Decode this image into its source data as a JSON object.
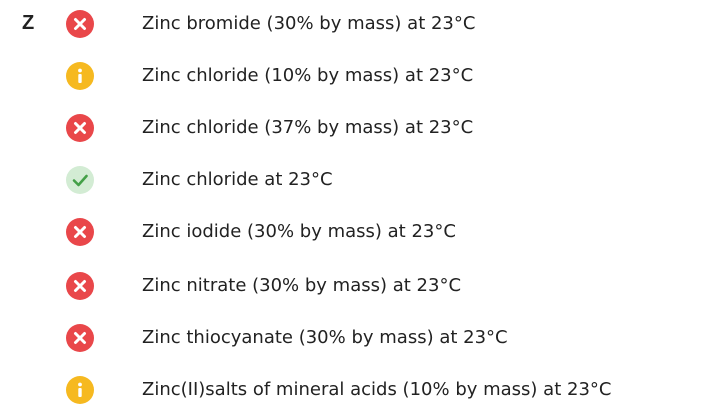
{
  "section": {
    "letter": "Z",
    "items": [
      "Zinc bromide (30% by mass) at 23°C",
      "Zinc chloride (10% by mass) at 23°C",
      "Zinc chloride (37% by mass) at 23°C",
      "Zinc chloride at 23°C",
      "Zinc iodide (30% by mass) at 23°C",
      "Zinc nitrate (30% by mass) at 23°C",
      "Zinc thiocyanate (30% by mass) at 23°C",
      "Zinc(II)salts of mineral acids (10% by mass) at 23°C"
    ]
  }
}
